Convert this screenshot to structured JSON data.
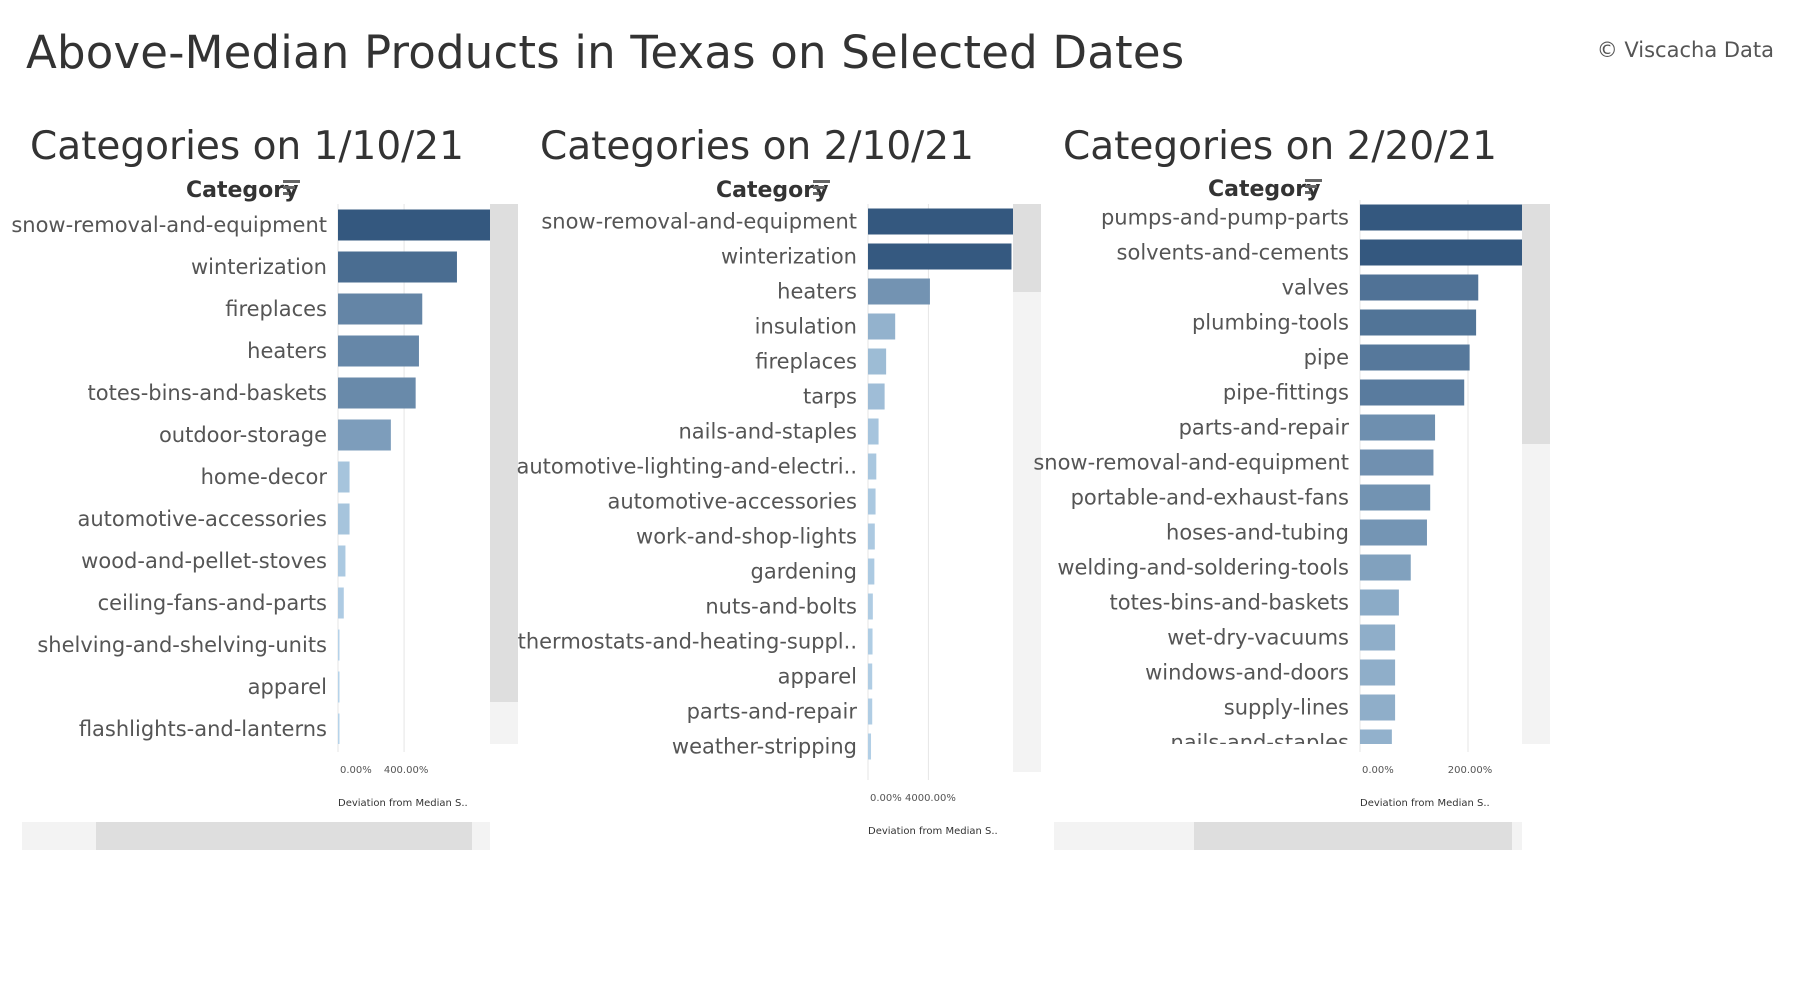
{
  "header": {
    "title": "Above-Median Products in Texas on Selected Dates",
    "copyright": "© Viscacha Data"
  },
  "panels": [
    {
      "title": "Categories on 1/10/21",
      "category_header": "Category",
      "axis_title": "Deviation from Median S.."
    },
    {
      "title": "Categories on 2/10/21",
      "category_header": "Category",
      "axis_title": "Deviation from Median S.."
    },
    {
      "title": "Categories on 2/20/21",
      "category_header": "Category",
      "axis_title": "Deviation from Median S.."
    }
  ],
  "icons": {
    "sort": "sort-descending-icon"
  },
  "colors": {
    "bar_dark": "#34587f",
    "bar_light": "#b9d6ec",
    "gridline": "#e6e6e6",
    "scroll_thumb": "#dedede"
  },
  "chart_data": [
    {
      "type": "bar",
      "orientation": "horizontal",
      "title": "Categories on 1/10/21",
      "ylabel": "Category",
      "xlabel": "Deviation from Median S..",
      "xticks": [
        0,
        400
      ],
      "xtick_labels": [
        "0.00%",
        "400.00%"
      ],
      "xlim": [
        0,
        920
      ],
      "categories": [
        "snow-removal-and-equipment",
        "winterization",
        "fireplaces",
        "heaters",
        "totes-bins-and-baskets",
        "outdoor-storage",
        "home-decor",
        "automotive-accessories",
        "wood-and-pellet-stoves",
        "ceiling-fans-and-parts",
        "shelving-and-shelving-units",
        "apparel",
        "flashlights-and-lanterns"
      ],
      "values": [
        920,
        720,
        510,
        490,
        470,
        320,
        70,
        70,
        45,
        35,
        8,
        5,
        5
      ]
    },
    {
      "type": "bar",
      "orientation": "horizontal",
      "title": "Categories on 2/10/21",
      "ylabel": "Category",
      "xlabel": "Deviation from Median S..",
      "xticks": [
        0,
        4000
      ],
      "xtick_labels": [
        "0.00%",
        "4000.00%"
      ],
      "xlim": [
        0,
        9600
      ],
      "categories": [
        "snow-removal-and-equipment",
        "winterization",
        "heaters",
        "insulation",
        "fireplaces",
        "tarps",
        "nails-and-staples",
        "automotive-lighting-and-electri..",
        "automotive-accessories",
        "work-and-shop-lights",
        "gardening",
        "nuts-and-bolts",
        "thermostats-and-heating-suppl..",
        "apparel",
        "parts-and-repair",
        "weather-stripping"
      ],
      "values": [
        9600,
        9500,
        4100,
        1800,
        1200,
        1100,
        700,
        550,
        500,
        450,
        420,
        320,
        300,
        280,
        280,
        200
      ]
    },
    {
      "type": "bar",
      "orientation": "horizontal",
      "title": "Categories on 2/20/21",
      "ylabel": "Category",
      "xlabel": "Deviation from Median S..",
      "xticks": [
        0,
        200
      ],
      "xtick_labels": [
        "0.00%",
        "200.00%"
      ],
      "xlim": [
        0,
        300
      ],
      "categories": [
        "pumps-and-pump-parts",
        "solvents-and-cements",
        "valves",
        "plumbing-tools",
        "pipe",
        "pipe-fittings",
        "parts-and-repair",
        "snow-removal-and-equipment",
        "portable-and-exhaust-fans",
        "hoses-and-tubing",
        "welding-and-soldering-tools",
        "totes-bins-and-baskets",
        "wet-dry-vacuums",
        "windows-and-doors",
        "supply-lines",
        "nails-and-staples"
      ],
      "values": [
        300,
        300,
        219,
        215,
        203,
        193,
        139,
        136,
        130,
        124,
        94,
        72,
        65,
        65,
        65,
        59
      ]
    }
  ]
}
